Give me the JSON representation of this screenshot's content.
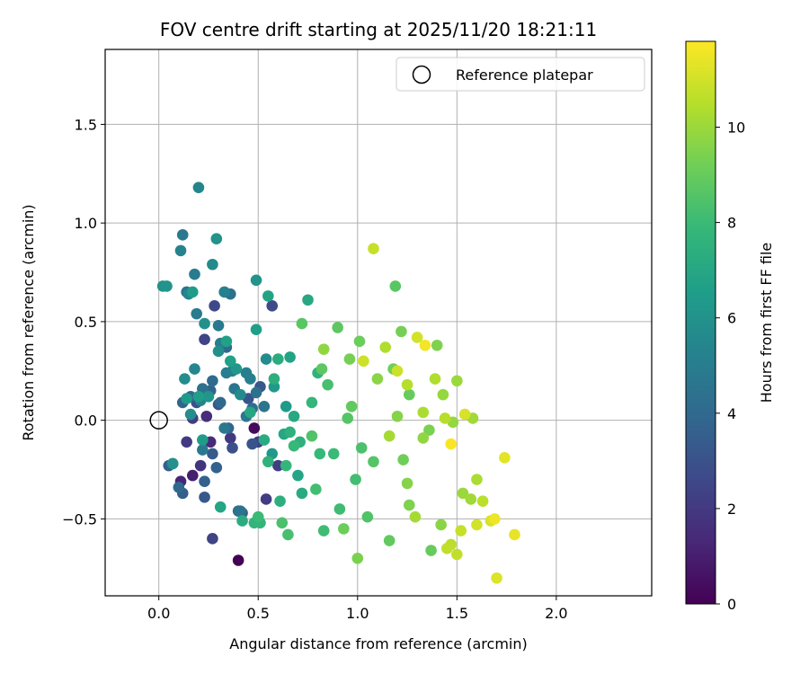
{
  "chart_data": {
    "type": "scatter",
    "title": "FOV centre drift starting at 2025/11/20 18:21:11",
    "xlabel": "Angular distance from reference (arcmin)",
    "ylabel": "Rotation from reference (arcmin)",
    "xlim": [
      -0.27,
      2.48
    ],
    "ylim": [
      -0.89,
      1.88
    ],
    "xticks": [
      0.0,
      0.5,
      1.0,
      1.5,
      2.0
    ],
    "xtick_labels": [
      "0.0",
      "0.5",
      "1.0",
      "1.5",
      "2.0"
    ],
    "yticks": [
      -0.5,
      0.0,
      0.5,
      1.0,
      1.5
    ],
    "ytick_labels": [
      "−0.5",
      "0.0",
      "0.5",
      "1.0",
      "1.5"
    ],
    "grid": true,
    "legend": {
      "position": "top-right",
      "entries": [
        "Reference platepar"
      ]
    },
    "reference_point": {
      "x": 0.0,
      "y": 0.0
    },
    "colorbar": {
      "label": "Hours from first FF file",
      "range": [
        0,
        11.8
      ],
      "ticks": [
        0,
        2,
        4,
        6,
        8,
        10
      ],
      "tick_labels": [
        "0",
        "2",
        "4",
        "6",
        "8",
        "10"
      ],
      "colormap": [
        "#440154",
        "#482878",
        "#3e4989",
        "#31688e",
        "#26828e",
        "#1f9e89",
        "#35b779",
        "#6ece58",
        "#b5de2b",
        "#fde725"
      ]
    },
    "series": [
      {
        "name": "FOV centre",
        "points": [
          [
            0.4,
            -0.71,
            0.0
          ],
          [
            0.48,
            -0.04,
            0.3
          ],
          [
            0.17,
            -0.28,
            1.0
          ],
          [
            0.11,
            -0.31,
            1.2
          ],
          [
            0.24,
            0.02,
            1.5
          ],
          [
            0.26,
            -0.11,
            1.4
          ],
          [
            0.21,
            -0.23,
            1.8
          ],
          [
            0.14,
            -0.11,
            2.0
          ],
          [
            0.36,
            -0.09,
            2.0
          ],
          [
            0.17,
            0.01,
            2.1
          ],
          [
            0.54,
            -0.4,
            2.1
          ],
          [
            0.6,
            -0.23,
            2.2
          ],
          [
            0.5,
            -0.11,
            2.2
          ],
          [
            0.27,
            -0.6,
            2.4
          ],
          [
            0.23,
            0.41,
            2.4
          ],
          [
            0.28,
            0.58,
            2.6
          ],
          [
            0.57,
            0.58,
            2.7
          ],
          [
            0.37,
            -0.14,
            2.9
          ],
          [
            0.3,
            0.08,
            3.0
          ],
          [
            0.19,
            0.09,
            3.0
          ],
          [
            0.45,
            0.11,
            3.1
          ],
          [
            0.47,
            -0.12,
            3.1
          ],
          [
            0.51,
            0.17,
            3.2
          ],
          [
            0.23,
            -0.39,
            3.3
          ],
          [
            0.27,
            -0.17,
            3.4
          ],
          [
            0.12,
            -0.37,
            3.5
          ],
          [
            0.42,
            -0.47,
            3.6
          ],
          [
            0.07,
            -0.22,
            3.6
          ],
          [
            0.05,
            -0.23,
            3.6
          ],
          [
            0.29,
            -0.24,
            3.7
          ],
          [
            0.23,
            -0.31,
            3.7
          ],
          [
            0.12,
            0.09,
            3.8
          ],
          [
            0.26,
            0.15,
            3.8
          ],
          [
            0.35,
            -0.04,
            3.9
          ],
          [
            0.16,
            0.12,
            3.9
          ],
          [
            0.31,
            0.09,
            4.0
          ],
          [
            0.1,
            -0.34,
            4.0
          ],
          [
            0.27,
            0.2,
            4.1
          ],
          [
            0.34,
            0.37,
            4.1
          ],
          [
            0.4,
            -0.46,
            4.2
          ],
          [
            0.36,
            0.64,
            4.3
          ],
          [
            0.47,
            0.06,
            4.3
          ],
          [
            0.22,
            0.16,
            4.4
          ],
          [
            0.49,
            0.14,
            4.4
          ],
          [
            0.41,
            -0.46,
            4.5
          ],
          [
            0.14,
            0.65,
            4.5
          ],
          [
            0.38,
            0.16,
            4.6
          ],
          [
            0.53,
            0.07,
            4.6
          ],
          [
            0.44,
            0.02,
            4.7
          ],
          [
            0.33,
            -0.04,
            4.7
          ],
          [
            0.22,
            -0.15,
            4.8
          ],
          [
            0.3,
            0.48,
            4.8
          ],
          [
            0.12,
            0.94,
            4.8
          ],
          [
            0.18,
            0.74,
            4.9
          ],
          [
            0.19,
            0.54,
            4.9
          ],
          [
            0.31,
            0.39,
            5.0
          ],
          [
            0.34,
            0.24,
            5.0
          ],
          [
            0.44,
            0.24,
            5.1
          ],
          [
            0.46,
            0.21,
            5.1
          ],
          [
            0.37,
            0.25,
            5.2
          ],
          [
            0.33,
            0.65,
            5.2
          ],
          [
            0.21,
            0.1,
            5.3
          ],
          [
            0.11,
            0.86,
            5.3
          ],
          [
            0.2,
            1.18,
            5.4
          ],
          [
            0.15,
            0.64,
            5.4
          ],
          [
            0.18,
            0.26,
            5.5
          ],
          [
            0.27,
            0.79,
            5.6
          ],
          [
            0.41,
            0.13,
            5.6
          ],
          [
            0.13,
            0.21,
            5.7
          ],
          [
            0.54,
            0.31,
            5.7
          ],
          [
            0.3,
            0.35,
            5.8
          ],
          [
            0.16,
            0.03,
            5.8
          ],
          [
            0.07,
            -0.22,
            5.9
          ],
          [
            0.23,
            0.49,
            5.9
          ],
          [
            0.29,
            0.92,
            6.0
          ],
          [
            0.02,
            0.68,
            6.0
          ],
          [
            0.04,
            0.68,
            6.1
          ],
          [
            0.49,
            0.71,
            6.1
          ],
          [
            0.25,
            0.12,
            6.2
          ],
          [
            0.39,
            0.26,
            6.2
          ],
          [
            0.57,
            -0.17,
            6.3
          ],
          [
            0.58,
            0.17,
            6.3
          ],
          [
            0.64,
            0.07,
            6.4
          ],
          [
            0.14,
            0.11,
            6.4
          ],
          [
            0.17,
            0.65,
            6.5
          ],
          [
            0.22,
            -0.1,
            6.5
          ],
          [
            0.49,
            0.46,
            6.6
          ],
          [
            0.2,
            0.12,
            6.6
          ],
          [
            0.34,
            0.4,
            6.7
          ],
          [
            0.36,
            0.3,
            6.7
          ],
          [
            0.55,
            0.63,
            6.8
          ],
          [
            0.66,
            0.32,
            6.8
          ],
          [
            0.7,
            -0.28,
            6.9
          ],
          [
            0.31,
            -0.44,
            6.9
          ],
          [
            0.46,
            0.04,
            7.0
          ],
          [
            0.63,
            -0.07,
            7.0
          ],
          [
            0.68,
            0.02,
            7.1
          ],
          [
            0.75,
            0.61,
            7.1
          ],
          [
            0.53,
            -0.1,
            7.2
          ],
          [
            0.72,
            -0.37,
            7.2
          ],
          [
            0.6,
            0.31,
            7.3
          ],
          [
            0.42,
            -0.51,
            7.3
          ],
          [
            0.61,
            -0.41,
            7.4
          ],
          [
            0.58,
            0.21,
            7.4
          ],
          [
            0.66,
            -0.06,
            7.5
          ],
          [
            0.71,
            -0.11,
            7.5
          ],
          [
            0.55,
            -0.21,
            7.6
          ],
          [
            0.8,
            0.24,
            7.6
          ],
          [
            0.48,
            -0.52,
            7.7
          ],
          [
            0.51,
            -0.52,
            7.7
          ],
          [
            0.64,
            -0.23,
            7.8
          ],
          [
            0.77,
            0.09,
            7.8
          ],
          [
            0.81,
            -0.17,
            7.9
          ],
          [
            0.68,
            -0.13,
            7.9
          ],
          [
            0.5,
            -0.49,
            8.0
          ],
          [
            0.88,
            -0.17,
            8.0
          ],
          [
            0.83,
            -0.56,
            8.1
          ],
          [
            0.91,
            -0.45,
            8.1
          ],
          [
            0.79,
            -0.35,
            8.2
          ],
          [
            0.99,
            -0.3,
            8.2
          ],
          [
            0.85,
            0.18,
            8.3
          ],
          [
            0.65,
            -0.58,
            8.3
          ],
          [
            0.62,
            -0.52,
            8.4
          ],
          [
            1.02,
            -0.14,
            8.4
          ],
          [
            0.77,
            -0.08,
            8.5
          ],
          [
            1.05,
            -0.49,
            8.5
          ],
          [
            0.95,
            0.01,
            8.6
          ],
          [
            1.08,
            -0.21,
            8.6
          ],
          [
            1.19,
            0.68,
            8.7
          ],
          [
            0.72,
            0.49,
            8.7
          ],
          [
            0.82,
            0.26,
            8.8
          ],
          [
            0.9,
            0.47,
            8.8
          ],
          [
            0.97,
            0.07,
            8.9
          ],
          [
            1.16,
            -0.61,
            8.9
          ],
          [
            1.26,
            0.13,
            9.0
          ],
          [
            1.37,
            -0.66,
            9.0
          ],
          [
            0.93,
            -0.55,
            9.1
          ],
          [
            1.01,
            0.4,
            9.1
          ],
          [
            1.18,
            0.26,
            9.2
          ],
          [
            1.23,
            -0.2,
            9.2
          ],
          [
            1.22,
            0.45,
            9.3
          ],
          [
            0.96,
            0.31,
            9.3
          ],
          [
            1.0,
            -0.7,
            9.4
          ],
          [
            1.36,
            -0.05,
            9.4
          ],
          [
            1.26,
            -0.43,
            9.5
          ],
          [
            1.4,
            0.38,
            9.5
          ],
          [
            1.25,
            -0.32,
            9.6
          ],
          [
            1.2,
            0.02,
            9.6
          ],
          [
            1.1,
            0.21,
            9.7
          ],
          [
            1.42,
            -0.53,
            9.7
          ],
          [
            0.83,
            0.36,
            9.8
          ],
          [
            1.33,
            -0.09,
            9.8
          ],
          [
            1.43,
            0.13,
            9.9
          ],
          [
            1.48,
            -0.01,
            9.9
          ],
          [
            1.5,
            0.2,
            10.0
          ],
          [
            1.53,
            -0.37,
            10.0
          ],
          [
            1.58,
            0.01,
            10.1
          ],
          [
            1.57,
            -0.4,
            10.1
          ],
          [
            1.29,
            -0.49,
            10.2
          ],
          [
            1.16,
            -0.08,
            10.2
          ],
          [
            1.33,
            0.04,
            10.3
          ],
          [
            1.6,
            -0.3,
            10.3
          ],
          [
            1.14,
            0.37,
            10.4
          ],
          [
            1.39,
            0.21,
            10.4
          ],
          [
            1.44,
            0.01,
            10.5
          ],
          [
            1.25,
            0.18,
            10.5
          ],
          [
            1.63,
            -0.41,
            10.6
          ],
          [
            1.47,
            -0.63,
            10.6
          ],
          [
            1.45,
            -0.65,
            10.7
          ],
          [
            1.5,
            -0.68,
            10.7
          ],
          [
            1.52,
            -0.56,
            10.8
          ],
          [
            1.08,
            0.87,
            10.8
          ],
          [
            1.03,
            0.3,
            10.9
          ],
          [
            1.2,
            0.25,
            10.9
          ],
          [
            1.6,
            -0.53,
            11.0
          ],
          [
            1.3,
            0.42,
            11.0
          ],
          [
            1.54,
            0.03,
            11.1
          ],
          [
            1.67,
            -0.51,
            11.1
          ],
          [
            1.7,
            -0.8,
            11.2
          ],
          [
            1.74,
            -0.19,
            11.3
          ],
          [
            1.79,
            -0.58,
            11.4
          ],
          [
            1.69,
            -0.5,
            11.5
          ],
          [
            1.34,
            0.38,
            11.6
          ],
          [
            1.47,
            -0.12,
            11.7
          ]
        ]
      }
    ]
  }
}
